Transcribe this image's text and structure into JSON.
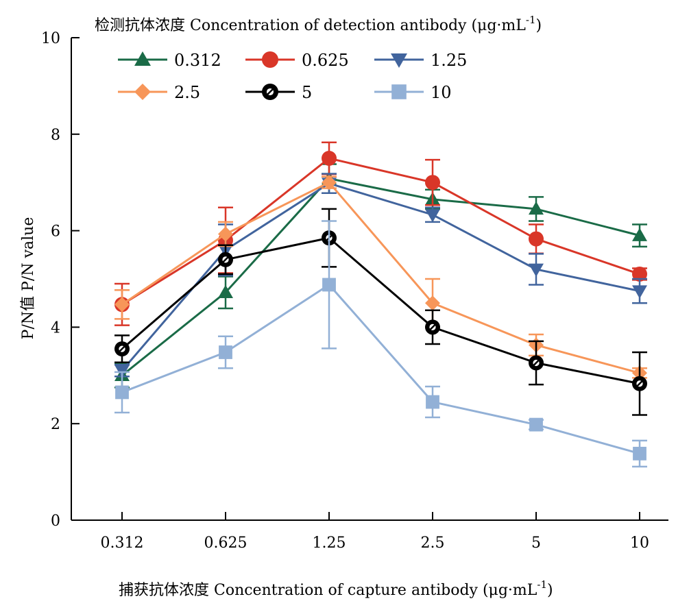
{
  "chart_data": {
    "type": "line",
    "title": "检测抗体浓度 Concentration of detection antibody (μg·mL",
    "title_superscript": "-1",
    "title_tail": ")",
    "xlabel": "捕获抗体浓度 Concentration of capture antibody (μg·mL",
    "xlabel_superscript": "-1",
    "xlabel_tail": ")",
    "ylabel": "P/N值 P/N value",
    "categories": [
      "0.312",
      "0.625",
      "1.25",
      "2.5",
      "5",
      "10"
    ],
    "ylim": [
      0,
      10
    ],
    "yticks": [
      "0",
      "2",
      "4",
      "6",
      "8",
      "10"
    ],
    "grid": false,
    "legend_position": "top-left",
    "series": [
      {
        "name": "0.312",
        "color": "#1a6b47",
        "marker": "triangle-up",
        "values": [
          3.0,
          4.72,
          7.08,
          6.65,
          6.45,
          5.9
        ],
        "errors": [
          0.25,
          0.33,
          0.3,
          0.2,
          0.25,
          0.23
        ]
      },
      {
        "name": "0.625",
        "color": "#d93628",
        "marker": "circle",
        "values": [
          4.47,
          5.8,
          7.5,
          7.0,
          5.83,
          5.1
        ],
        "errors": [
          0.43,
          0.68,
          0.33,
          0.47,
          0.3,
          0.12
        ]
      },
      {
        "name": "1.25",
        "color": "#41649d",
        "marker": "triangle-down",
        "values": [
          3.1,
          5.6,
          6.98,
          6.33,
          5.2,
          4.75
        ],
        "errors": [
          0.12,
          0.53,
          0.2,
          0.15,
          0.32,
          0.25
        ]
      },
      {
        "name": "2.5",
        "color": "#f79659",
        "marker": "diamond",
        "values": [
          4.47,
          5.93,
          7.0,
          4.5,
          3.63,
          3.05
        ],
        "errors": [
          0.3,
          0.25,
          0.12,
          0.5,
          0.22,
          0.1
        ]
      },
      {
        "name": "5",
        "color": "#000000",
        "marker": "ring",
        "values": [
          3.55,
          5.4,
          5.85,
          4.0,
          3.26,
          2.83
        ],
        "errors": [
          0.28,
          0.3,
          0.6,
          0.35,
          0.45,
          0.65
        ]
      },
      {
        "name": "10",
        "color": "#92b0d6",
        "marker": "square",
        "values": [
          2.65,
          3.48,
          4.88,
          2.45,
          1.98,
          1.38
        ],
        "errors": [
          0.42,
          0.33,
          1.32,
          0.32,
          0.1,
          0.27
        ]
      }
    ]
  }
}
